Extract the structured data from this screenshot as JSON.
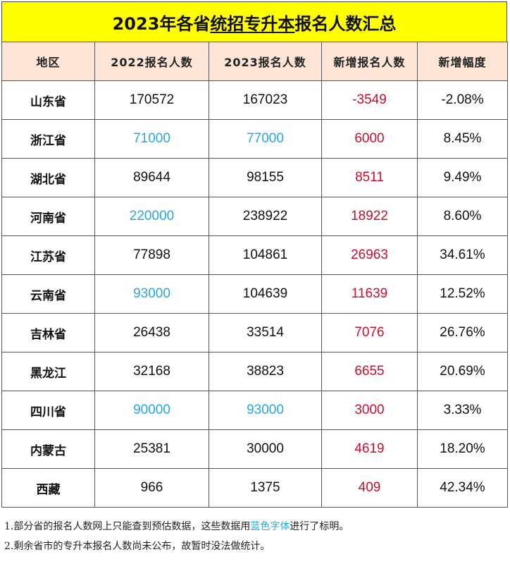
{
  "title": {
    "prefix": "2023年各省",
    "underlined": "统招专升本",
    "suffix": "报名人数汇总"
  },
  "headers": [
    "地区",
    "2022报名人数",
    "2023报名人数",
    "新增报名人数",
    "新增幅度"
  ],
  "rows": [
    {
      "region": "山东省",
      "y2022": "170572",
      "y2023": "167023",
      "increase": "-3549",
      "rate": "-2.08%",
      "est2022": false,
      "est2023": false
    },
    {
      "region": "浙江省",
      "y2022": "71000",
      "y2023": "77000",
      "increase": "6000",
      "rate": "8.45%",
      "est2022": true,
      "est2023": true
    },
    {
      "region": "湖北省",
      "y2022": "89644",
      "y2023": "98155",
      "increase": "8511",
      "rate": "9.49%",
      "est2022": false,
      "est2023": false
    },
    {
      "region": "河南省",
      "y2022": "220000",
      "y2023": "238922",
      "increase": "18922",
      "rate": "8.60%",
      "est2022": true,
      "est2023": false
    },
    {
      "region": "江苏省",
      "y2022": "77898",
      "y2023": "104861",
      "increase": "26963",
      "rate": "34.61%",
      "est2022": false,
      "est2023": false
    },
    {
      "region": "云南省",
      "y2022": "93000",
      "y2023": "104639",
      "increase": "11639",
      "rate": "12.52%",
      "est2022": true,
      "est2023": false
    },
    {
      "region": "吉林省",
      "y2022": "26438",
      "y2023": "33514",
      "increase": "7076",
      "rate": "26.76%",
      "est2022": false,
      "est2023": false
    },
    {
      "region": "黑龙江",
      "y2022": "32168",
      "y2023": "38823",
      "increase": "6655",
      "rate": "20.69%",
      "est2022": false,
      "est2023": false
    },
    {
      "region": "四川省",
      "y2022": "90000",
      "y2023": "93000",
      "increase": "3000",
      "rate": "3.33%",
      "est2022": true,
      "est2023": true
    },
    {
      "region": "内蒙古",
      "y2022": "25381",
      "y2023": "30000",
      "increase": "4619",
      "rate": "18.20%",
      "est2022": false,
      "est2023": false
    },
    {
      "region": "西藏",
      "y2022": "966",
      "y2023": "1375",
      "increase": "409",
      "rate": "42.34%",
      "est2022": false,
      "est2023": false
    }
  ],
  "notes": {
    "line1_before": "1.部分省的报名人数网上只能查到预估数据，这些数据用",
    "line1_highlight": "蓝色字体",
    "line1_after": "进行了标明。",
    "line2": "2.剩余省市的专升本报名人数尚未公布，故暂时没法做统计。"
  },
  "colors": {
    "title_bg": "#ffff00",
    "header_bg": "#fce4d6",
    "estimate_blue": "#27a7e0",
    "increase_red": "#c8102e"
  }
}
